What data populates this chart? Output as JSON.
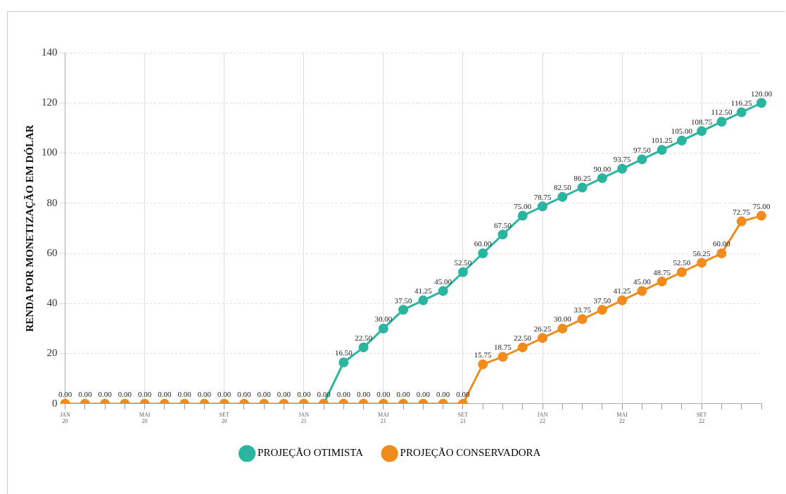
{
  "chart_data": {
    "type": "line",
    "ylabel": "RENDA POR MONETIZAÇÃO EM DÓLAR",
    "categories": [
      "JAN 20",
      null,
      null,
      null,
      "MAI 20",
      null,
      null,
      null,
      "SET 20",
      null,
      null,
      null,
      "JAN 21",
      null,
      null,
      null,
      "MAI 21",
      null,
      null,
      null,
      "SET 21",
      null,
      null,
      null,
      "JAN 22",
      null,
      null,
      null,
      "MAI 22",
      null,
      null,
      null,
      "SET 22",
      null,
      null,
      null
    ],
    "series": [
      {
        "name": "PROJEÇÃO OTIMISTA",
        "color": "#2bb5a0",
        "values": [
          null,
          null,
          null,
          null,
          null,
          null,
          null,
          null,
          null,
          null,
          null,
          null,
          null,
          0,
          16.5,
          22.5,
          30,
          37.5,
          41.25,
          45,
          52.5,
          60,
          67.5,
          75,
          78.75,
          82.5,
          86.25,
          90,
          93.75,
          97.5,
          101.25,
          105,
          108.75,
          112.5,
          116.25,
          120
        ],
        "value_labels": [
          null,
          null,
          null,
          null,
          null,
          null,
          null,
          null,
          null,
          null,
          null,
          null,
          null,
          null,
          "16.50",
          "22.50",
          "30.00",
          "37.50",
          "41.25",
          "45.00",
          "52.50",
          "60.00",
          "67.50",
          "75.00",
          "78.75",
          "82.50",
          "86.25",
          "90.00",
          "93.75",
          "97.50",
          "101.25",
          "105.00",
          "108.75",
          "112.50",
          "116.25",
          "120.00"
        ]
      },
      {
        "name": "PROJEÇÃO CONSERVADORA",
        "color": "#f08c1e",
        "values": [
          0,
          0,
          0,
          0,
          0,
          0,
          0,
          0,
          0,
          0,
          0,
          0,
          0,
          0,
          0,
          0,
          0,
          0,
          0,
          0,
          0,
          15.75,
          18.75,
          22.5,
          26.25,
          30,
          33.75,
          37.5,
          41.25,
          45,
          48.75,
          52.5,
          56.25,
          60,
          72.75,
          75
        ],
        "value_labels": [
          "0.00",
          "0.00",
          "0.00",
          "0.00",
          "0.00",
          "0.00",
          "0.00",
          "0.00",
          "0.00",
          "0.00",
          "0.00",
          "0.00",
          "0.00",
          "0.00",
          "0.00",
          "0.00",
          "0.00",
          "0.00",
          "0.00",
          "0.00",
          "0.00",
          "15.75",
          "18.75",
          "22.50",
          "26.25",
          "30.00",
          "33.75",
          "37.50",
          "41.25",
          "45.00",
          "48.75",
          "52.50",
          "56.25",
          "60.00",
          "72.75",
          "75.00"
        ]
      }
    ],
    "ylim": [
      0,
      140
    ],
    "yticks": [
      0,
      20,
      40,
      60,
      80,
      100,
      120,
      140
    ],
    "grid": true,
    "legend": "bottom",
    "marker": "circle",
    "line_style": "solid"
  }
}
